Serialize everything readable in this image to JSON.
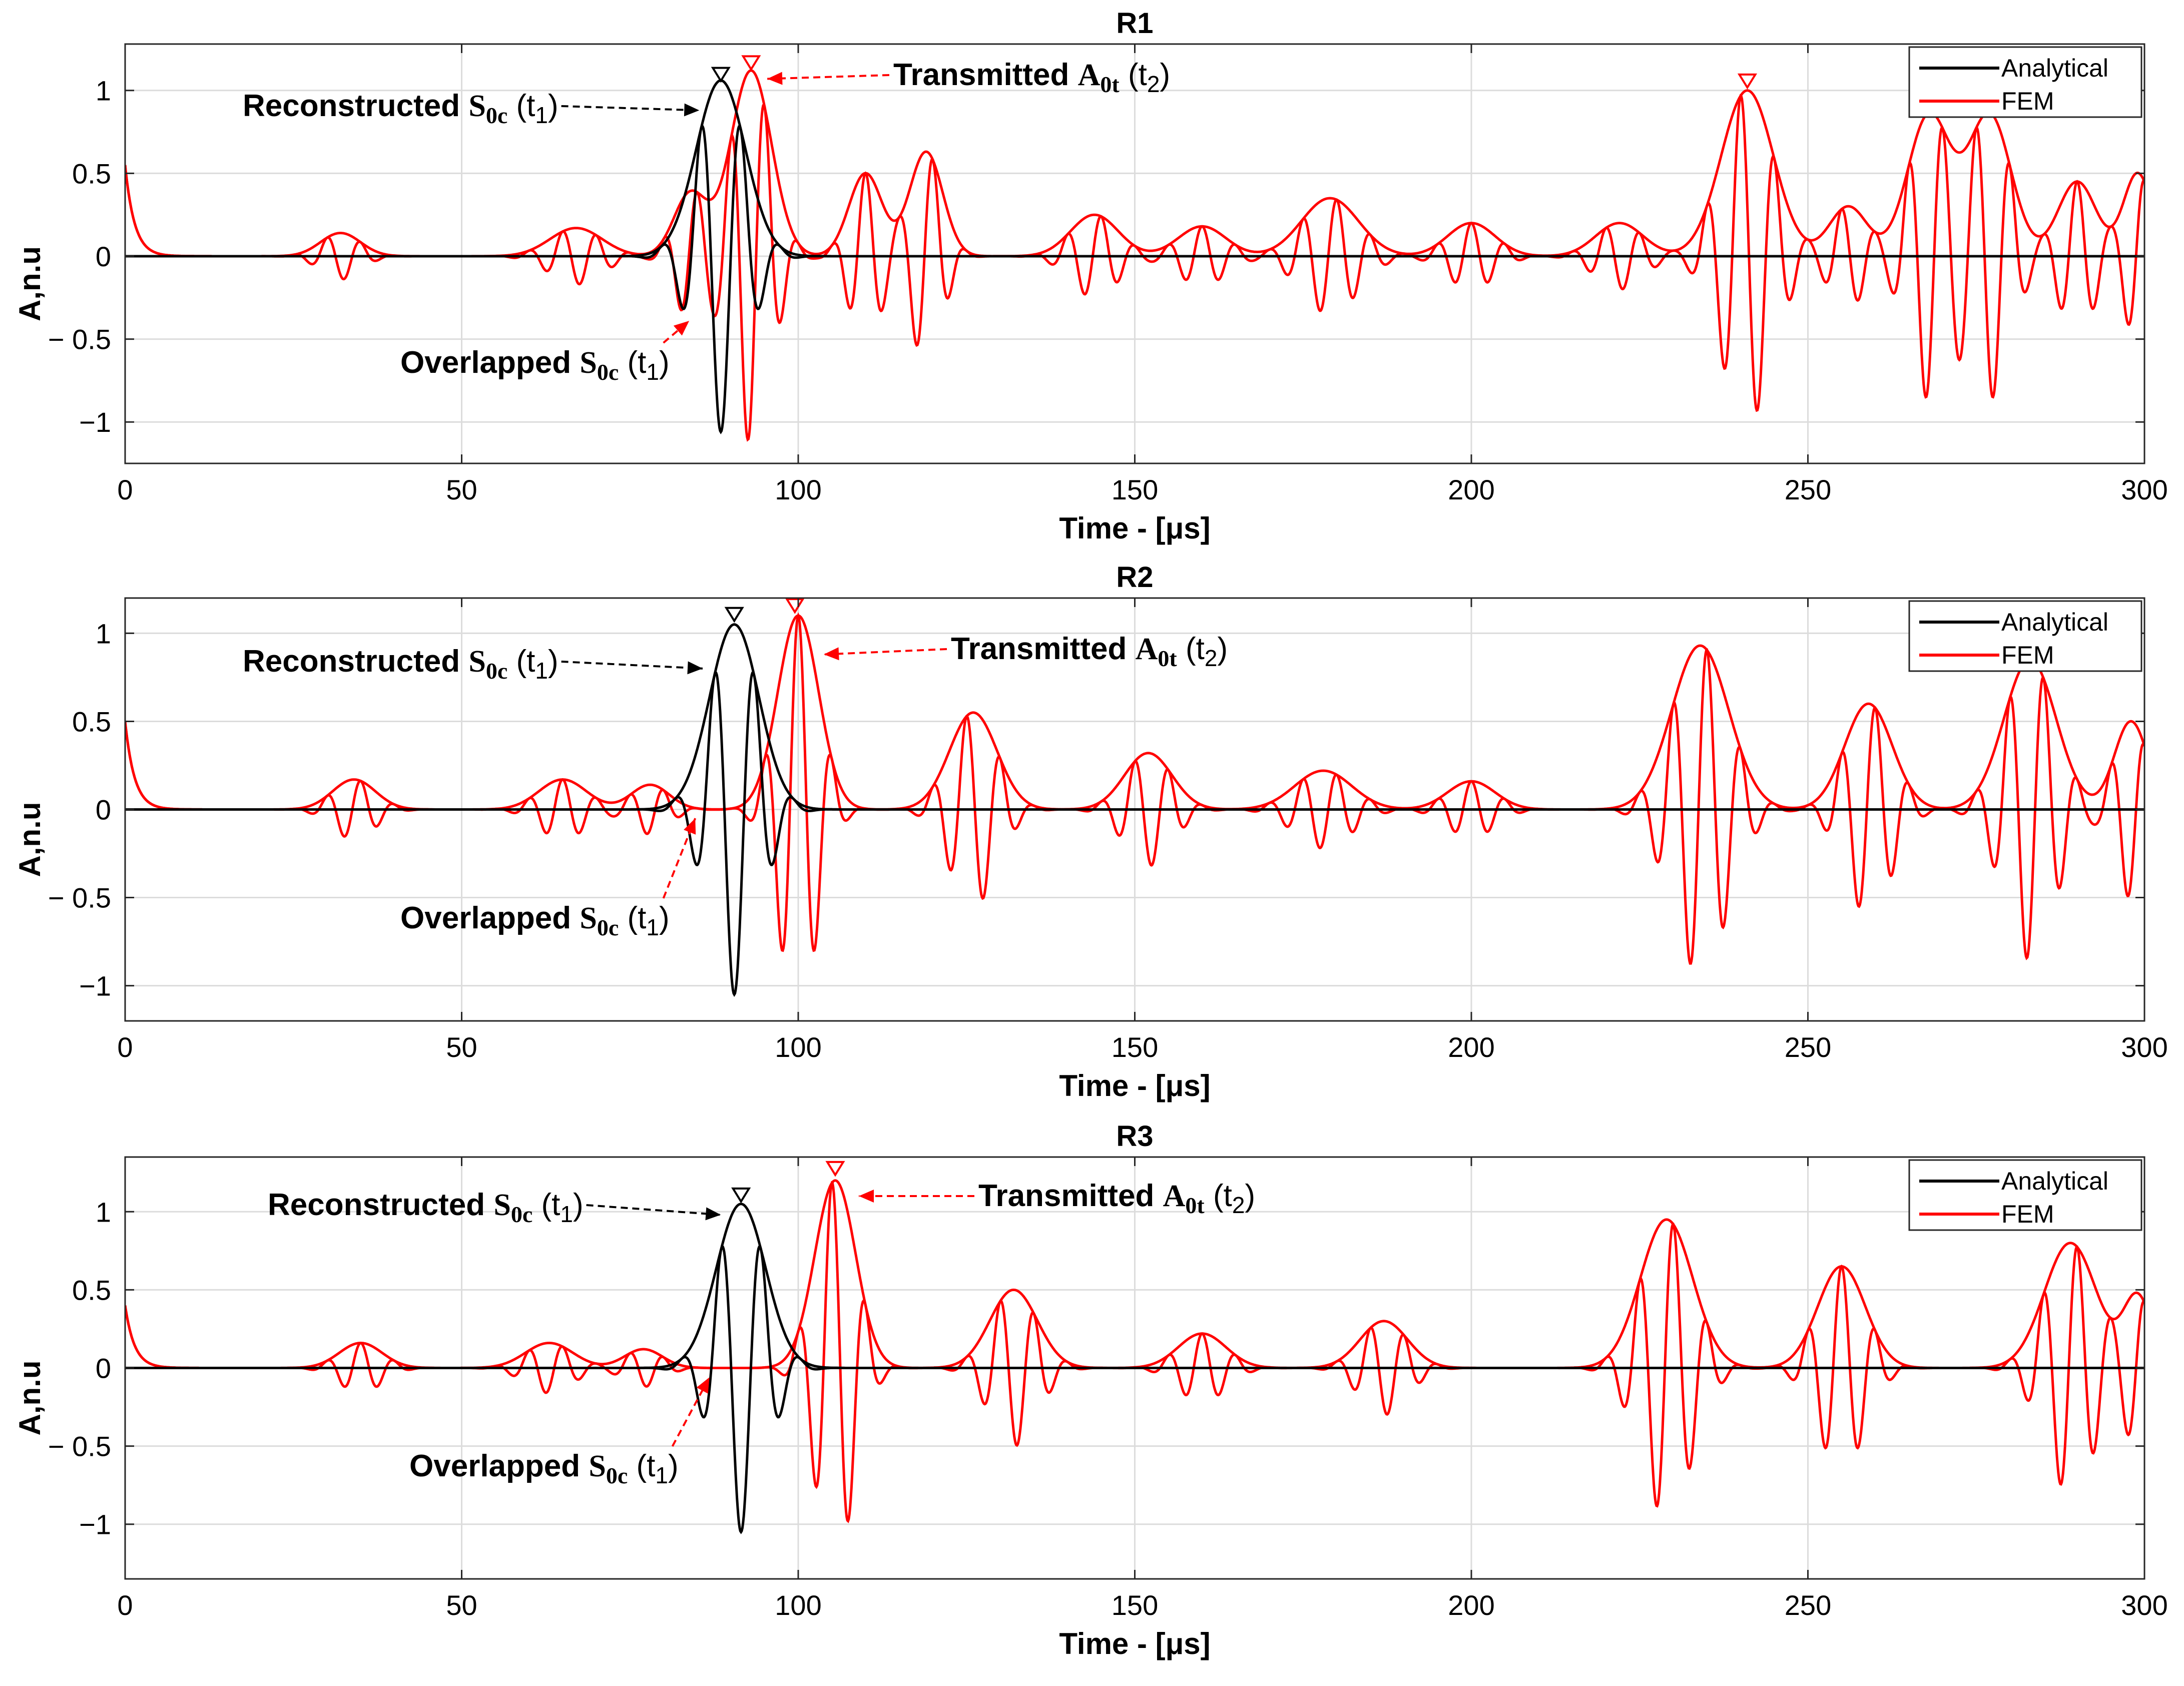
{
  "colors": {
    "analytical": "#000000",
    "fem": "#ff0000",
    "grid": "#dcdcdc",
    "axes": "#262626",
    "background": "#ffffff"
  },
  "chart_data": [
    {
      "type": "line",
      "title": "R1",
      "xlabel": "Time - [μs]",
      "ylabel": "A,n.u",
      "xlim": [
        0,
        300
      ],
      "ylim": [
        -1.25,
        1.28
      ],
      "xticks": [
        0,
        50,
        100,
        150,
        200,
        250,
        300
      ],
      "yticks": [
        1,
        0.5,
        0,
        -0.5,
        -1
      ],
      "ytick_labels": [
        "1",
        "0.5",
        "0",
        "− 0.5",
        "−1"
      ],
      "legend": [
        "Analytical",
        "FEM"
      ],
      "legend_position": "top-right",
      "analytical": {
        "center": 88.5,
        "amplitude": 1.06,
        "frequency": 0.17,
        "width": 5.2
      },
      "fem": {
        "bursts": [
          {
            "t": 32,
            "a": 0.14,
            "w": 4.2
          },
          {
            "t": 67,
            "a": 0.17,
            "w": 5.5
          },
          {
            "t": 84,
            "a": 0.38,
            "w": 3.5
          },
          {
            "t": 93,
            "a": 1.12,
            "w": 4.3
          },
          {
            "t": 110,
            "a": 0.5,
            "w": 3.5
          },
          {
            "t": 119,
            "a": 0.63,
            "w": 3.5
          },
          {
            "t": 144,
            "a": 0.25,
            "w": 5
          },
          {
            "t": 160,
            "a": 0.18,
            "w": 5
          },
          {
            "t": 179,
            "a": 0.35,
            "w": 6
          },
          {
            "t": 200,
            "a": 0.2,
            "w": 5
          },
          {
            "t": 222,
            "a": 0.2,
            "w": 5
          },
          {
            "t": 241,
            "a": 1.0,
            "w": 5.5
          },
          {
            "t": 256,
            "a": 0.3,
            "w": 4
          },
          {
            "t": 268,
            "a": 0.85,
            "w": 4.5
          },
          {
            "t": 277,
            "a": 0.85,
            "w": 4.5
          },
          {
            "t": 290,
            "a": 0.45,
            "w": 4
          },
          {
            "t": 299,
            "a": 0.5,
            "w": 3
          }
        ],
        "start_spike": 0.55,
        "frequency": 0.2
      },
      "peak_markers": [
        {
          "series": "Analytical",
          "t": 88.5,
          "value": 1.1
        },
        {
          "series": "FEM",
          "t": 93,
          "value": 1.17
        },
        {
          "series": "FEM",
          "t": 241,
          "value": 1.06
        }
      ],
      "annotations": {
        "reconstructed": {
          "text": "Reconstructed ",
          "sym": "S",
          "sub": "0c",
          "tail": " (t",
          "idx": "1",
          "close": ")",
          "arrow_to_t": 85.3,
          "arrow_to_y": 0.88
        },
        "transmitted": {
          "text": "Transmitted ",
          "sym": "A",
          "sub": "0t",
          "tail": " (t",
          "idx": "2",
          "close": ")",
          "arrow_to_t": 95.4,
          "arrow_to_y": 1.07
        },
        "overlapped": {
          "text": "Overlapped ",
          "sym": "S",
          "sub": "0c",
          "tail": " (t",
          "idx": "1",
          "close": ")",
          "arrow_to_t": 83.8,
          "arrow_to_y": -0.39
        }
      }
    },
    {
      "type": "line",
      "title": "R2",
      "xlabel": "Time - [μs]",
      "ylabel": "A,n.u",
      "xlim": [
        0,
        300
      ],
      "ylim": [
        -1.2,
        1.2
      ],
      "xticks": [
        0,
        50,
        100,
        150,
        200,
        250,
        300
      ],
      "yticks": [
        1,
        0.5,
        0,
        -0.5,
        -1
      ],
      "ytick_labels": [
        "1",
        "0.5",
        "0",
        "− 0.5",
        "−1"
      ],
      "legend": [
        "Analytical",
        "FEM"
      ],
      "legend_position": "top-right",
      "analytical": {
        "center": 90.5,
        "amplitude": 1.05,
        "frequency": 0.17,
        "width": 5.2
      },
      "fem": {
        "bursts": [
          {
            "t": 34,
            "a": 0.17,
            "w": 4.5
          },
          {
            "t": 65,
            "a": 0.17,
            "w": 5
          },
          {
            "t": 78,
            "a": 0.14,
            "w": 4
          },
          {
            "t": 100,
            "a": 1.1,
            "w": 4.3
          },
          {
            "t": 126,
            "a": 0.55,
            "w": 5
          },
          {
            "t": 152,
            "a": 0.32,
            "w": 5
          },
          {
            "t": 178,
            "a": 0.22,
            "w": 6
          },
          {
            "t": 200,
            "a": 0.16,
            "w": 5
          },
          {
            "t": 234,
            "a": 0.93,
            "w": 6
          },
          {
            "t": 259,
            "a": 0.6,
            "w": 5
          },
          {
            "t": 283,
            "a": 0.85,
            "w": 5.5
          },
          {
            "t": 298,
            "a": 0.5,
            "w": 3.5
          }
        ],
        "start_spike": 0.5,
        "frequency": 0.2
      },
      "peak_markers": [
        {
          "series": "Analytical",
          "t": 90.5,
          "value": 1.11
        },
        {
          "series": "FEM",
          "t": 99.5,
          "value": 1.16
        }
      ],
      "annotations": {
        "reconstructed": {
          "text": "Reconstructed ",
          "sym": "S",
          "sub": "0c",
          "tail": " (t",
          "idx": "1",
          "close": ")",
          "arrow_to_t": 85.8,
          "arrow_to_y": 0.8
        },
        "transmitted": {
          "text": "Transmitted ",
          "sym": "A",
          "sub": "0t",
          "tail": " (t",
          "idx": "2",
          "close": ")",
          "arrow_to_t": 103.8,
          "arrow_to_y": 0.88
        },
        "overlapped": {
          "text": "Overlapped ",
          "sym": "S",
          "sub": "0c",
          "tail": " (t",
          "idx": "1",
          "close": ")",
          "arrow_to_t": 84.7,
          "arrow_to_y": -0.05
        }
      }
    },
    {
      "type": "line",
      "title": "R3",
      "xlabel": "Time - [μs]",
      "ylabel": "A,n.u",
      "xlim": [
        0,
        300
      ],
      "ylim": [
        -1.35,
        1.35
      ],
      "xticks": [
        0,
        50,
        100,
        150,
        200,
        250,
        300
      ],
      "yticks": [
        1,
        0.5,
        0,
        -0.5,
        -1
      ],
      "ytick_labels": [
        "1",
        "0.5",
        "0",
        "− 0.5",
        "−1"
      ],
      "legend": [
        "Analytical",
        "FEM"
      ],
      "legend_position": "top-right",
      "analytical": {
        "center": 91.5,
        "amplitude": 1.05,
        "frequency": 0.17,
        "width": 5.2
      },
      "fem": {
        "bursts": [
          {
            "t": 35,
            "a": 0.16,
            "w": 4.5
          },
          {
            "t": 63,
            "a": 0.16,
            "w": 5
          },
          {
            "t": 77,
            "a": 0.12,
            "w": 4
          },
          {
            "t": 105.5,
            "a": 1.2,
            "w": 4.3
          },
          {
            "t": 132,
            "a": 0.5,
            "w": 5
          },
          {
            "t": 160,
            "a": 0.22,
            "w": 5
          },
          {
            "t": 187,
            "a": 0.3,
            "w": 5
          },
          {
            "t": 229,
            "a": 0.95,
            "w": 5.5
          },
          {
            "t": 255,
            "a": 0.65,
            "w": 5
          },
          {
            "t": 289,
            "a": 0.8,
            "w": 5.5
          },
          {
            "t": 299,
            "a": 0.45,
            "w": 3
          }
        ],
        "start_spike": 0.4,
        "frequency": 0.2
      },
      "peak_markers": [
        {
          "series": "Analytical",
          "t": 91.5,
          "value": 1.11
        },
        {
          "series": "FEM",
          "t": 105.5,
          "value": 1.28
        }
      ],
      "annotations": {
        "reconstructed": {
          "text": "Reconstructed ",
          "sym": "S",
          "sub": "0c",
          "tail": " (t",
          "idx": "1",
          "close": ")",
          "arrow_to_t": 88.5,
          "arrow_to_y": 0.98
        },
        "transmitted": {
          "text": "Transmitted ",
          "sym": "A",
          "sub": "0t",
          "tail": " (t",
          "idx": "2",
          "close": ")",
          "arrow_to_t": 109,
          "arrow_to_y": 1.1
        },
        "overlapped": {
          "text": "Overlapped ",
          "sym": "S",
          "sub": "0c",
          "tail": " (t",
          "idx": "1",
          "close": ")",
          "arrow_to_t": 86.8,
          "arrow_to_y": -0.06
        }
      }
    }
  ]
}
